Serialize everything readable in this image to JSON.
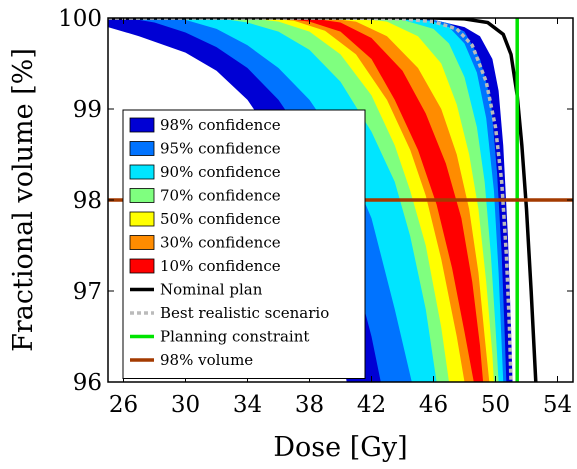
{
  "chart_data": {
    "type": "area",
    "title": "",
    "xlabel": "Dose [Gy]",
    "ylabel": "Fractional volume [%]",
    "xlim": [
      25,
      55
    ],
    "ylim": [
      96,
      100
    ],
    "xticks": [
      26,
      30,
      34,
      38,
      42,
      46,
      50,
      54
    ],
    "yticks": [
      96,
      97,
      98,
      99,
      100
    ],
    "grid": false,
    "legend_position": "inside-left",
    "confidence_bands": [
      {
        "name": "98% confidence",
        "color": "#0000d4",
        "lower": [
          [
            25,
            99.9
          ],
          [
            27,
            99.8
          ],
          [
            30,
            99.62
          ],
          [
            32,
            99.42
          ],
          [
            34,
            99.1
          ],
          [
            36,
            98.6
          ],
          [
            38,
            97.8
          ],
          [
            40,
            96.4
          ],
          [
            40.4,
            96.0
          ]
        ],
        "upper": [
          [
            25,
            100
          ],
          [
            44,
            100
          ],
          [
            46,
            99.98
          ],
          [
            48,
            99.9
          ],
          [
            49,
            99.8
          ],
          [
            49.8,
            99.55
          ],
          [
            50.2,
            99.2
          ],
          [
            50.5,
            98.6
          ],
          [
            50.8,
            97.6
          ],
          [
            51.0,
            96.6
          ],
          [
            51.1,
            96.0
          ]
        ]
      },
      {
        "name": "95% confidence",
        "color": "#0073ff",
        "lower": [
          [
            25,
            100
          ],
          [
            27,
            99.98
          ],
          [
            28,
            99.95
          ],
          [
            30,
            99.84
          ],
          [
            32,
            99.68
          ],
          [
            34,
            99.45
          ],
          [
            36,
            99.1
          ],
          [
            38,
            98.6
          ],
          [
            40,
            97.8
          ],
          [
            42,
            96.5
          ],
          [
            42.6,
            96.0
          ]
        ],
        "upper": [
          [
            25,
            100
          ],
          [
            44,
            100
          ],
          [
            46,
            99.98
          ],
          [
            47,
            99.94
          ],
          [
            48,
            99.85
          ],
          [
            49,
            99.55
          ],
          [
            49.7,
            99.1
          ],
          [
            50.1,
            98.3
          ],
          [
            50.4,
            97.4
          ],
          [
            50.6,
            96.5
          ],
          [
            50.7,
            96.0
          ]
        ]
      },
      {
        "name": "90% confidence",
        "color": "#00e5ff",
        "lower": [
          [
            25,
            100
          ],
          [
            29,
            100
          ],
          [
            30,
            99.98
          ],
          [
            32,
            99.88
          ],
          [
            34,
            99.7
          ],
          [
            36,
            99.45
          ],
          [
            38,
            99.1
          ],
          [
            40,
            98.6
          ],
          [
            42,
            97.8
          ],
          [
            43.5,
            96.8
          ],
          [
            44.6,
            96.0
          ]
        ],
        "upper": [
          [
            25,
            100
          ],
          [
            44,
            100
          ],
          [
            46,
            99.96
          ],
          [
            47,
            99.9
          ],
          [
            48,
            99.72
          ],
          [
            48.8,
            99.4
          ],
          [
            49.4,
            98.9
          ],
          [
            49.9,
            98.1
          ],
          [
            50.2,
            97.2
          ],
          [
            50.4,
            96.4
          ],
          [
            50.5,
            96.0
          ]
        ]
      },
      {
        "name": "70% confidence",
        "color": "#7fff7f",
        "lower": [
          [
            25,
            100
          ],
          [
            32,
            100
          ],
          [
            34,
            99.95
          ],
          [
            36,
            99.85
          ],
          [
            38,
            99.65
          ],
          [
            40,
            99.3
          ],
          [
            42,
            98.75
          ],
          [
            43.5,
            98.2
          ],
          [
            44.5,
            97.6
          ],
          [
            45.5,
            96.8
          ],
          [
            46.2,
            96.0
          ]
        ],
        "upper": [
          [
            25,
            100
          ],
          [
            42,
            100
          ],
          [
            44,
            99.98
          ],
          [
            46,
            99.88
          ],
          [
            47,
            99.72
          ],
          [
            48,
            99.35
          ],
          [
            48.8,
            98.8
          ],
          [
            49.3,
            98.2
          ],
          [
            49.7,
            97.4
          ],
          [
            50,
            96.6
          ],
          [
            50.2,
            96.0
          ]
        ]
      },
      {
        "name": "50% confidence",
        "color": "#ffff00",
        "lower": [
          [
            25,
            100
          ],
          [
            34,
            100
          ],
          [
            36,
            99.96
          ],
          [
            38,
            99.85
          ],
          [
            40,
            99.6
          ],
          [
            42,
            99.15
          ],
          [
            43.5,
            98.6
          ],
          [
            44.5,
            98.1
          ],
          [
            45.5,
            97.5
          ],
          [
            46.5,
            96.6
          ],
          [
            47,
            96.0
          ]
        ],
        "upper": [
          [
            25,
            100
          ],
          [
            41,
            100
          ],
          [
            43,
            99.96
          ],
          [
            45,
            99.8
          ],
          [
            46.5,
            99.5
          ],
          [
            47.5,
            99.05
          ],
          [
            48.3,
            98.5
          ],
          [
            48.9,
            97.9
          ],
          [
            49.4,
            97.1
          ],
          [
            49.8,
            96.3
          ],
          [
            49.9,
            96.0
          ]
        ]
      },
      {
        "name": "30% confidence",
        "color": "#ff8c00",
        "lower": [
          [
            25,
            100
          ],
          [
            35,
            100
          ],
          [
            37,
            99.97
          ],
          [
            39,
            99.86
          ],
          [
            41,
            99.6
          ],
          [
            43,
            99.1
          ],
          [
            44.5,
            98.55
          ],
          [
            45.5,
            98.05
          ],
          [
            46.5,
            97.35
          ],
          [
            47.5,
            96.5
          ],
          [
            48,
            96.0
          ]
        ],
        "upper": [
          [
            25,
            100
          ],
          [
            39,
            100
          ],
          [
            41,
            99.96
          ],
          [
            43,
            99.8
          ],
          [
            45,
            99.45
          ],
          [
            46.5,
            99.0
          ],
          [
            47.5,
            98.5
          ],
          [
            48.3,
            97.9
          ],
          [
            48.9,
            97.2
          ],
          [
            49.3,
            96.5
          ],
          [
            49.6,
            96.0
          ]
        ]
      },
      {
        "name": "10% confidence",
        "color": "#ff0000",
        "lower": [
          [
            25,
            100
          ],
          [
            36,
            100
          ],
          [
            38,
            99.96
          ],
          [
            40,
            99.85
          ],
          [
            42,
            99.55
          ],
          [
            43.5,
            99.1
          ],
          [
            45,
            98.55
          ],
          [
            46.2,
            97.95
          ],
          [
            47.2,
            97.25
          ],
          [
            48,
            96.55
          ],
          [
            48.6,
            96.0
          ]
        ],
        "upper": [
          [
            25,
            100
          ],
          [
            38,
            100
          ],
          [
            40,
            99.95
          ],
          [
            42,
            99.78
          ],
          [
            44,
            99.42
          ],
          [
            45.5,
            98.95
          ],
          [
            46.8,
            98.4
          ],
          [
            47.8,
            97.8
          ],
          [
            48.5,
            97.1
          ],
          [
            49,
            96.4
          ],
          [
            49.2,
            96.0
          ]
        ]
      }
    ],
    "series": [
      {
        "name": "Nominal plan",
        "color": "#000000",
        "style": "solid",
        "points": [
          [
            25,
            100
          ],
          [
            46,
            100
          ],
          [
            48,
            99.99
          ],
          [
            49.5,
            99.95
          ],
          [
            50.5,
            99.82
          ],
          [
            51,
            99.6
          ],
          [
            51.4,
            99.15
          ],
          [
            51.7,
            98.6
          ],
          [
            52,
            97.9
          ],
          [
            52.3,
            97
          ],
          [
            52.6,
            96
          ],
          [
            52.7,
            95.5
          ]
        ]
      },
      {
        "name": "Best realistic scenario",
        "color": "#bbbbbb",
        "style": "dotted",
        "points": [
          [
            25,
            100
          ],
          [
            40,
            100
          ],
          [
            44,
            99.99
          ],
          [
            46,
            99.96
          ],
          [
            47.5,
            99.88
          ],
          [
            48.5,
            99.7
          ],
          [
            49.4,
            99.3
          ],
          [
            50,
            98.8
          ],
          [
            50.4,
            98.2
          ],
          [
            50.7,
            97.4
          ],
          [
            50.9,
            96.6
          ],
          [
            51,
            96
          ]
        ]
      },
      {
        "name": "Planning constraint",
        "color": "#00e400",
        "style": "solid",
        "vertical_x": 51.4
      },
      {
        "name": "98% volume",
        "color": "#a33a00",
        "style": "solid",
        "horizontal_y": 98
      }
    ]
  }
}
